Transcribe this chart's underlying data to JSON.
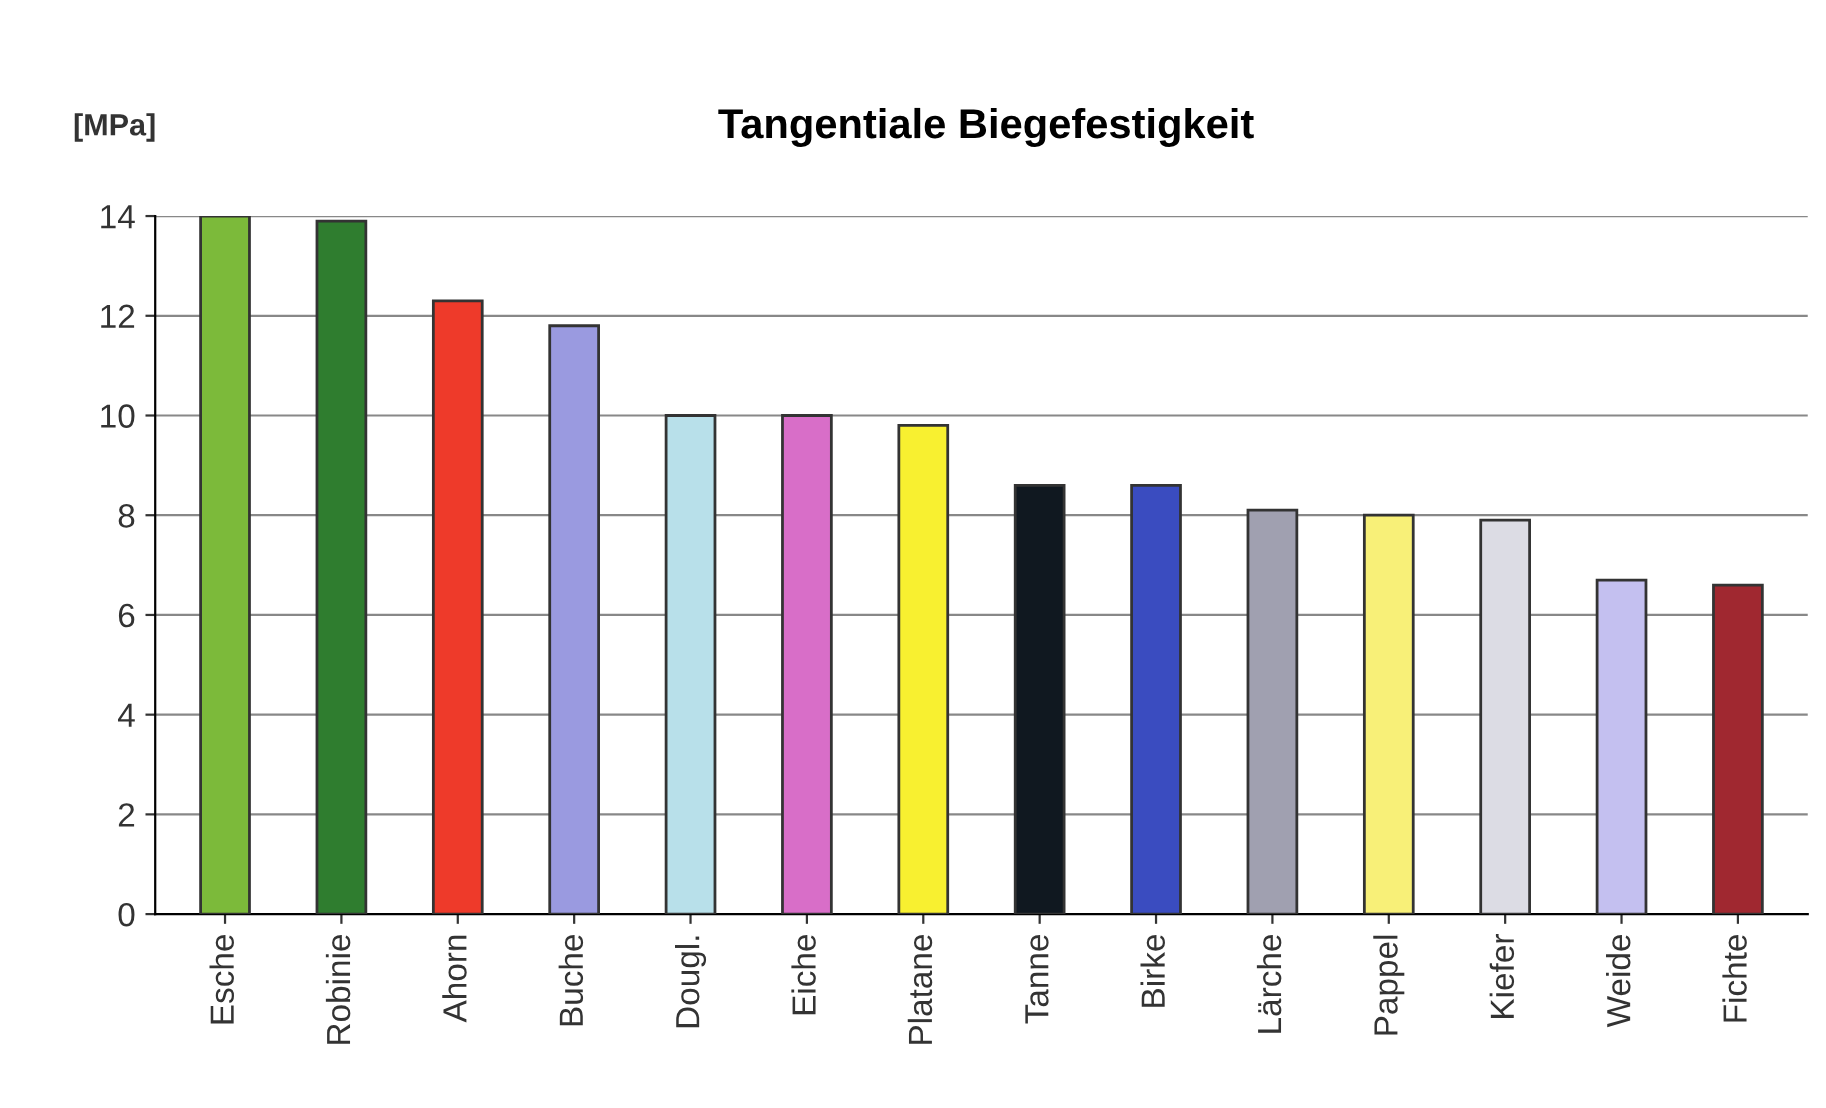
{
  "chart_data": {
    "type": "bar",
    "title": "Tangentiale Biegefestigkeit",
    "ylabel": "[MPa]",
    "categories": [
      "Esche",
      "Robinie",
      "Ahorn",
      "Buche",
      "Dougl.",
      "Eiche",
      "Platane",
      "Tanne",
      "Birke",
      "Lärche",
      "Pappel",
      "Kiefer",
      "Weide",
      "Fichte"
    ],
    "values": [
      14.0,
      13.9,
      12.3,
      11.8,
      10.0,
      10.0,
      9.8,
      8.6,
      8.6,
      8.1,
      8.0,
      7.9,
      6.7,
      6.6
    ],
    "colors": [
      "#7cba3a",
      "#2f7d2f",
      "#ee3a2a",
      "#9a9ae0",
      "#b8e0ea",
      "#d86ec8",
      "#f8f030",
      "#101820",
      "#3a4cc0",
      "#a0a0b0",
      "#f8f078",
      "#dcdce4",
      "#c4c0f0",
      "#a02830"
    ],
    "ylim": [
      0,
      14
    ],
    "yticks": [
      0,
      2,
      4,
      6,
      8,
      10,
      12,
      14
    ],
    "grid": "y"
  }
}
